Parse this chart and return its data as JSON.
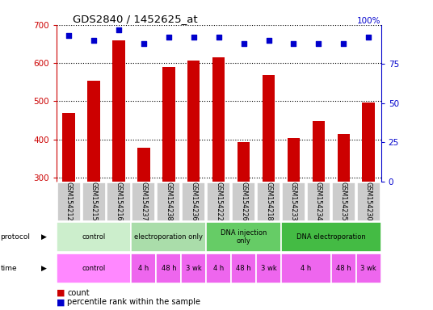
{
  "title": "GDS2840 / 1452625_at",
  "samples": [
    "GSM154212",
    "GSM154215",
    "GSM154216",
    "GSM154237",
    "GSM154238",
    "GSM154236",
    "GSM154222",
    "GSM154226",
    "GSM154218",
    "GSM154233",
    "GSM154234",
    "GSM154235",
    "GSM154230"
  ],
  "counts": [
    468,
    553,
    660,
    378,
    590,
    607,
    614,
    393,
    568,
    403,
    447,
    415,
    497
  ],
  "percentile_ranks": [
    93,
    90,
    97,
    88,
    92,
    92,
    92,
    88,
    90,
    88,
    88,
    88,
    92
  ],
  "bar_color": "#cc0000",
  "dot_color": "#0000cc",
  "ylim_left": [
    290,
    700
  ],
  "ylim_right": [
    0,
    100
  ],
  "yticks_left": [
    300,
    400,
    500,
    600,
    700
  ],
  "yticks_right": [
    0,
    25,
    50,
    75,
    100
  ],
  "protocol_groups": [
    {
      "label": "control",
      "start": 0,
      "end": 3,
      "color": "#cceecc"
    },
    {
      "label": "electroporation only",
      "start": 3,
      "end": 6,
      "color": "#aaddaa"
    },
    {
      "label": "DNA injection\nonly",
      "start": 6,
      "end": 9,
      "color": "#66cc66"
    },
    {
      "label": "DNA electroporation",
      "start": 9,
      "end": 13,
      "color": "#44bb44"
    }
  ],
  "time_groups": [
    {
      "label": "control",
      "start": 0,
      "end": 3,
      "color": "#ff88ff"
    },
    {
      "label": "4 h",
      "start": 3,
      "end": 4,
      "color": "#ee66ee"
    },
    {
      "label": "48 h",
      "start": 4,
      "end": 5,
      "color": "#ee66ee"
    },
    {
      "label": "3 wk",
      "start": 5,
      "end": 6,
      "color": "#ee66ee"
    },
    {
      "label": "4 h",
      "start": 6,
      "end": 7,
      "color": "#ee66ee"
    },
    {
      "label": "48 h",
      "start": 7,
      "end": 8,
      "color": "#ee66ee"
    },
    {
      "label": "3 wk",
      "start": 8,
      "end": 9,
      "color": "#ee66ee"
    },
    {
      "label": "4 h",
      "start": 9,
      "end": 11,
      "color": "#ee66ee"
    },
    {
      "label": "48 h",
      "start": 11,
      "end": 12,
      "color": "#ee66ee"
    },
    {
      "label": "3 wk",
      "start": 12,
      "end": 13,
      "color": "#ee66ee"
    }
  ],
  "left_col_color_prot": "#cceecc",
  "left_col_color_time": "#ff88ff",
  "xlabel_color_left": "#cc0000",
  "xlabel_color_right": "#0000cc",
  "background_color": "#ffffff",
  "sample_label_bg": "#cccccc",
  "sample_label_border": "#aaaaaa"
}
